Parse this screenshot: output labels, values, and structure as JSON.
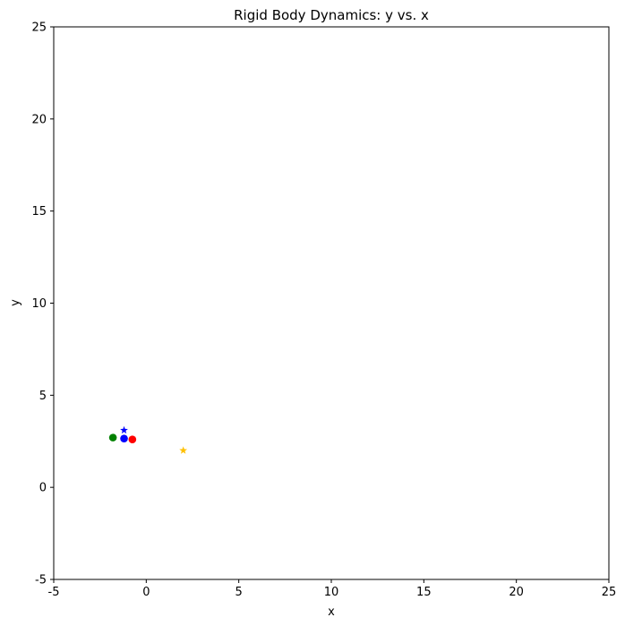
{
  "chart_data": {
    "type": "scatter",
    "title": "Rigid Body Dynamics: y vs. x",
    "xlabel": "x",
    "ylabel": "y",
    "xlim": [
      -5,
      25
    ],
    "ylim": [
      -5,
      25
    ],
    "xticks": [
      -5,
      0,
      5,
      10,
      15,
      20,
      25
    ],
    "yticks": [
      -5,
      0,
      5,
      10,
      15,
      20,
      25
    ],
    "grid": false,
    "points": [
      {
        "x": -1.8,
        "y": 2.7,
        "color": "#008000",
        "marker": "circle"
      },
      {
        "x": -1.2,
        "y": 2.65,
        "color": "#0000ff",
        "marker": "circle"
      },
      {
        "x": -0.75,
        "y": 2.6,
        "color": "#ff0000",
        "marker": "circle"
      },
      {
        "x": -1.2,
        "y": 3.1,
        "color": "#0000ff",
        "marker": "star"
      },
      {
        "x": 2.0,
        "y": 2.0,
        "color": "#ffc000",
        "marker": "star"
      }
    ]
  }
}
